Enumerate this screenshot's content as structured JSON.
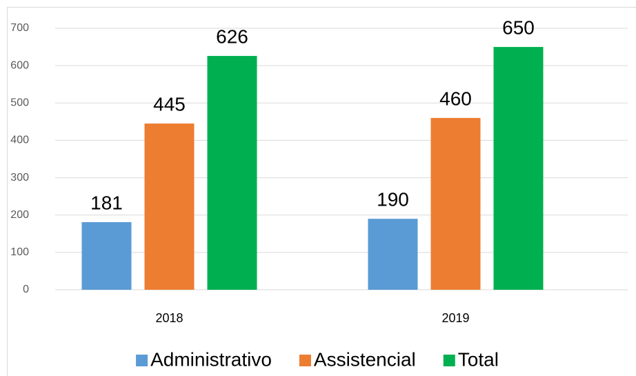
{
  "chart_data": {
    "type": "bar",
    "categories": [
      "2018",
      "2019"
    ],
    "series": [
      {
        "name": "Administrativo",
        "color": "#5b9bd5",
        "values": [
          181,
          190
        ]
      },
      {
        "name": "Assistencial",
        "color": "#ed7d31",
        "values": [
          445,
          460
        ]
      },
      {
        "name": "Total",
        "color": "#00b050",
        "values": [
          626,
          650
        ]
      }
    ],
    "ylim": [
      0,
      700
    ],
    "yticks": [
      0,
      100,
      200,
      300,
      400,
      500,
      600,
      700
    ],
    "grid": true,
    "legend": "bottom",
    "data_labels": true
  }
}
